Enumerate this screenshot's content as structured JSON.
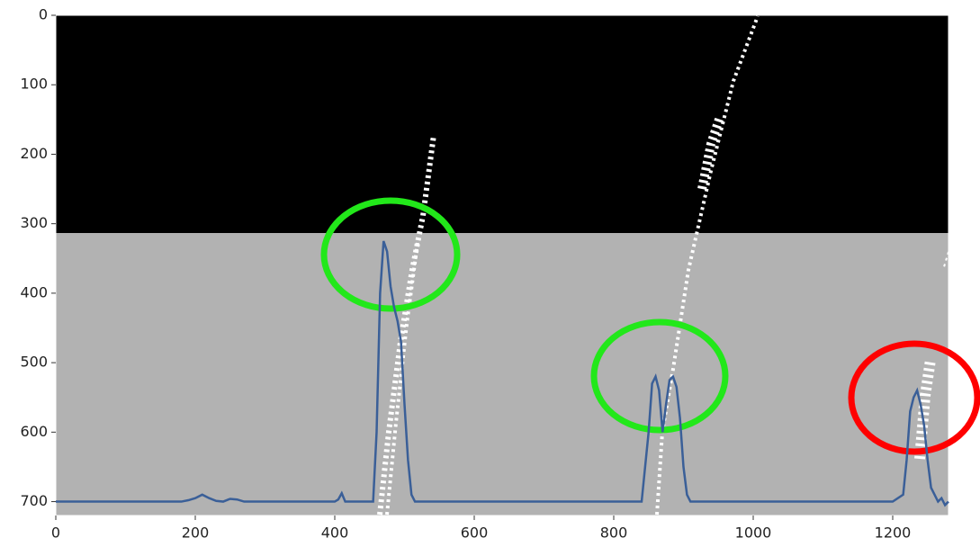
{
  "chart_data": {
    "type": "line",
    "x": [
      0,
      180,
      190,
      200,
      210,
      220,
      230,
      240,
      250,
      260,
      270,
      400,
      405,
      410,
      415,
      455,
      460,
      465,
      470,
      475,
      480,
      485,
      490,
      495,
      500,
      505,
      510,
      515,
      840,
      850,
      855,
      860,
      865,
      870,
      875,
      880,
      885,
      890,
      895,
      900,
      905,
      910,
      1200,
      1215,
      1220,
      1225,
      1230,
      1235,
      1240,
      1245,
      1250,
      1255,
      1260,
      1265,
      1270,
      1275,
      1280
    ],
    "series": [
      {
        "color": "#3a5f98",
        "values": [
          700,
          700,
          698,
          695,
          690,
          695,
          699,
          700,
          696,
          697,
          700,
          700,
          697,
          688,
          700,
          700,
          600,
          400,
          325,
          340,
          390,
          420,
          440,
          470,
          560,
          640,
          690,
          700,
          700,
          600,
          530,
          520,
          540,
          600,
          560,
          525,
          520,
          535,
          580,
          650,
          690,
          700,
          700,
          690,
          640,
          570,
          550,
          540,
          560,
          590,
          640,
          680,
          690,
          700,
          695,
          705,
          700
        ]
      }
    ],
    "xlim": [
      0,
      1280
    ],
    "ylim": [
      720,
      0
    ],
    "xticks": [
      0,
      200,
      400,
      600,
      800,
      1000,
      1200
    ],
    "yticks": [
      0,
      100,
      200,
      300,
      400,
      500,
      600,
      700
    ]
  }
}
